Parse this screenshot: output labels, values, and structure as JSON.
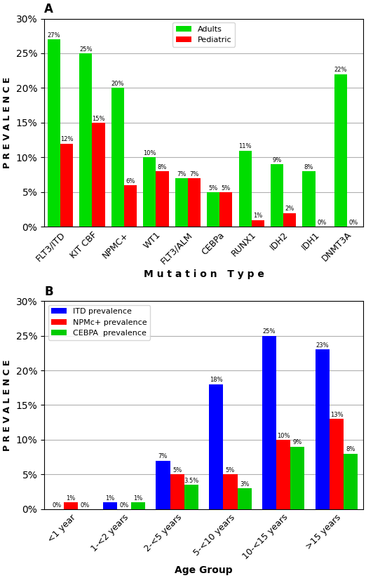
{
  "chart_data": [
    {
      "type": "bar",
      "title": "A",
      "xlabel": "M u t a t i o n   T y p e",
      "ylabel": "P R E V A L E N C E",
      "categories": [
        "FLT3/ITD",
        "KIT CBF",
        "NPMC+",
        "WT1",
        "FLT3/ALM",
        "CEBPa",
        "RUNX1",
        "IDH2",
        "IDH1",
        "DNMT3A"
      ],
      "series": [
        {
          "name": "Adults",
          "color": "#00dd00",
          "values": [
            27,
            25,
            20,
            10,
            7,
            5,
            11,
            9,
            8,
            22
          ],
          "value_labels": [
            "27%",
            "25%",
            "20%",
            "10%",
            "7%",
            "5%",
            "11%",
            "9%",
            "8%",
            "22%"
          ]
        },
        {
          "name": "Pediatric",
          "color": "#ff0000",
          "values": [
            12,
            15,
            6,
            8,
            7,
            5,
            1,
            2,
            0,
            0
          ],
          "value_labels": [
            "12%",
            "15%",
            "6%",
            "8%",
            "7%",
            "5%",
            "1%",
            "2%",
            "0%",
            "0%"
          ]
        }
      ],
      "ylim": [
        0,
        30
      ],
      "yticks": [
        {
          "value": 0,
          "label": "0%"
        },
        {
          "value": 5,
          "label": "5%"
        },
        {
          "value": 10,
          "label": "10%"
        },
        {
          "value": 15,
          "label": "15%"
        },
        {
          "value": 20,
          "label": "20%"
        },
        {
          "value": 25,
          "label": "25%"
        },
        {
          "value": 30,
          "label": "30%"
        }
      ],
      "grid": true,
      "legend": "upper center",
      "data_labels": true
    },
    {
      "type": "bar",
      "title": "B",
      "xlabel": "Age Group",
      "ylabel": "P R E V A L E N C E",
      "categories": [
        "<1 year",
        "1-<2 years",
        "2-<5 years",
        "5-<10 years",
        "10-<15 years",
        ">15 years"
      ],
      "series": [
        {
          "name": "ITD prevalence",
          "color": "#0000ff",
          "values": [
            0,
            1,
            7,
            18,
            25,
            23
          ],
          "value_labels": [
            "0%",
            "1%",
            "7%",
            "18%",
            "25%",
            "23%"
          ]
        },
        {
          "name": "NPMc+ prevalence",
          "color": "#ff0000",
          "values": [
            1,
            0,
            5,
            5,
            10,
            13
          ],
          "value_labels": [
            "1%",
            "0%",
            "5%",
            "5%",
            "10%",
            "13%"
          ]
        },
        {
          "name": "CEBPA  prevalence",
          "color": "#00cc00",
          "values": [
            0,
            1,
            3.5,
            3,
            9,
            8
          ],
          "value_labels": [
            "0%",
            "1%",
            "3.5%",
            "3%",
            "9%",
            "8%"
          ]
        }
      ],
      "ylim": [
        0,
        30
      ],
      "yticks": [
        {
          "value": 0,
          "label": "0%"
        },
        {
          "value": 5,
          "label": "5%"
        },
        {
          "value": 10,
          "label": "10%"
        },
        {
          "value": 15,
          "label": "15%"
        },
        {
          "value": 20,
          "label": "20%"
        },
        {
          "value": 25,
          "label": "25%"
        },
        {
          "value": 30,
          "label": "30%"
        }
      ],
      "grid": true,
      "legend": "upper left",
      "data_labels": true
    }
  ]
}
